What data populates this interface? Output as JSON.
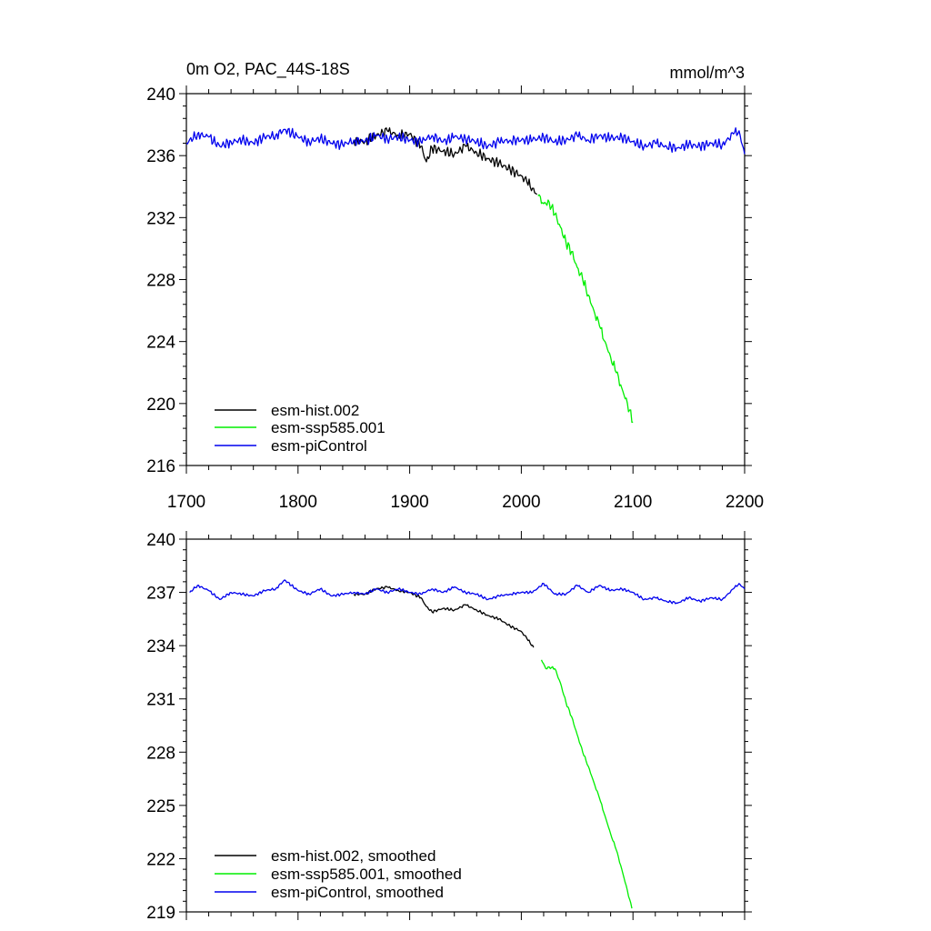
{
  "chart_data": [
    {
      "type": "line",
      "title": "0m O2, PAC_44S-18S",
      "units": "mmol/m^3",
      "xlim": [
        1700,
        2200
      ],
      "ylim": [
        216,
        240
      ],
      "x_ticks": [
        1700,
        1800,
        1900,
        2000,
        2100,
        2200
      ],
      "y_ticks": [
        216,
        220,
        224,
        228,
        232,
        236,
        240
      ],
      "x_tick_labels_shown": true,
      "legend_position": "bottom-left",
      "series": [
        {
          "name": "esm-hist.002",
          "color": "#000000",
          "x": [
            1850,
            1860,
            1870,
            1880,
            1890,
            1900,
            1910,
            1915,
            1920,
            1930,
            1940,
            1950,
            1960,
            1970,
            1980,
            1990,
            2000,
            2005,
            2010,
            2014
          ],
          "values": [
            237.0,
            236.9,
            237.3,
            237.6,
            237.3,
            237.4,
            236.6,
            235.6,
            236.5,
            236.3,
            236.1,
            236.6,
            236.2,
            235.8,
            235.5,
            235.1,
            234.7,
            234.3,
            233.9,
            233.5
          ]
        },
        {
          "name": "esm-ssp585.001",
          "color": "#00ee00",
          "x": [
            2015,
            2020,
            2025,
            2030,
            2035,
            2040,
            2045,
            2050,
            2055,
            2060,
            2065,
            2070,
            2075,
            2080,
            2085,
            2090,
            2095,
            2100
          ],
          "values": [
            233.4,
            232.9,
            233.0,
            232.2,
            231.4,
            230.4,
            229.8,
            228.8,
            228.0,
            227.0,
            226.0,
            225.0,
            224.0,
            223.0,
            222.0,
            221.0,
            220.0,
            218.8
          ]
        },
        {
          "name": "esm-piControl",
          "color": "#0000ee",
          "x": [
            1700,
            1710,
            1720,
            1730,
            1740,
            1750,
            1760,
            1770,
            1780,
            1788,
            1800,
            1810,
            1820,
            1830,
            1840,
            1850,
            1860,
            1870,
            1880,
            1890,
            1900,
            1910,
            1920,
            1930,
            1940,
            1950,
            1960,
            1970,
            1980,
            1990,
            2000,
            2010,
            2020,
            2030,
            2040,
            2050,
            2060,
            2070,
            2080,
            2090,
            2100,
            2110,
            2120,
            2130,
            2140,
            2150,
            2160,
            2170,
            2180,
            2190,
            2195,
            2200
          ],
          "values": [
            236.8,
            237.4,
            237.2,
            236.6,
            236.9,
            237.0,
            236.8,
            237.2,
            237.3,
            237.7,
            237.2,
            236.9,
            237.1,
            236.8,
            236.7,
            237.0,
            236.9,
            237.3,
            237.1,
            237.2,
            237.0,
            236.9,
            237.3,
            236.9,
            237.2,
            237.1,
            236.9,
            236.6,
            236.9,
            237.0,
            237.0,
            237.0,
            237.2,
            236.9,
            237.0,
            237.3,
            237.0,
            237.3,
            237.1,
            237.2,
            236.9,
            236.6,
            236.8,
            236.6,
            236.5,
            236.7,
            236.6,
            236.8,
            236.7,
            237.4,
            237.6,
            236.1
          ]
        }
      ]
    },
    {
      "type": "line",
      "title": "",
      "units": "",
      "xlim": [
        1700,
        2200
      ],
      "ylim": [
        219,
        240
      ],
      "x_ticks": [
        1700,
        1800,
        1900,
        2000,
        2100,
        2200
      ],
      "y_ticks": [
        219,
        222,
        225,
        228,
        231,
        234,
        237,
        240
      ],
      "x_tick_labels_shown": false,
      "legend_position": "bottom-left",
      "series": [
        {
          "name": "esm-hist.002, smoothed",
          "color": "#000000",
          "x": [
            1850,
            1860,
            1870,
            1880,
            1890,
            1900,
            1910,
            1915,
            1920,
            1930,
            1940,
            1950,
            1960,
            1970,
            1980,
            1990,
            2000,
            2005,
            2011
          ],
          "values": [
            236.9,
            236.9,
            237.2,
            237.3,
            237.1,
            237.0,
            236.7,
            236.2,
            235.9,
            236.1,
            236.0,
            236.3,
            236.0,
            235.7,
            235.5,
            235.1,
            234.8,
            234.4,
            233.9
          ]
        },
        {
          "name": "esm-ssp585.001, smoothed",
          "color": "#00ee00",
          "x": [
            2018,
            2022,
            2025,
            2030,
            2035,
            2040,
            2045,
            2050,
            2055,
            2060,
            2065,
            2070,
            2075,
            2080,
            2085,
            2090,
            2095,
            2099
          ],
          "values": [
            233.2,
            232.7,
            232.8,
            232.7,
            231.9,
            230.8,
            230.0,
            229.0,
            228.0,
            227.2,
            226.3,
            225.4,
            224.4,
            223.4,
            222.5,
            221.4,
            220.2,
            219.2
          ]
        },
        {
          "name": "esm-piControl, smoothed",
          "color": "#0000ee",
          "x": [
            1703,
            1710,
            1720,
            1730,
            1740,
            1750,
            1760,
            1770,
            1780,
            1788,
            1800,
            1810,
            1820,
            1830,
            1840,
            1850,
            1860,
            1870,
            1880,
            1890,
            1900,
            1910,
            1920,
            1930,
            1940,
            1950,
            1960,
            1970,
            1980,
            1990,
            2000,
            2010,
            2020,
            2030,
            2040,
            2050,
            2060,
            2070,
            2080,
            2090,
            2100,
            2110,
            2120,
            2130,
            2140,
            2150,
            2160,
            2170,
            2180,
            2190,
            2195,
            2200
          ],
          "values": [
            237.0,
            237.4,
            237.1,
            236.6,
            237.0,
            236.9,
            236.8,
            237.1,
            237.2,
            237.7,
            237.1,
            236.9,
            237.2,
            236.8,
            236.9,
            237.0,
            236.9,
            237.2,
            237.0,
            237.2,
            237.0,
            236.9,
            237.2,
            237.0,
            237.3,
            237.0,
            236.9,
            236.6,
            236.8,
            236.9,
            237.0,
            237.0,
            237.5,
            236.9,
            236.9,
            237.4,
            237.0,
            237.4,
            237.1,
            237.2,
            237.0,
            236.6,
            236.7,
            236.5,
            236.4,
            236.7,
            236.5,
            236.7,
            236.6,
            237.2,
            237.5,
            237.2
          ]
        }
      ]
    }
  ]
}
